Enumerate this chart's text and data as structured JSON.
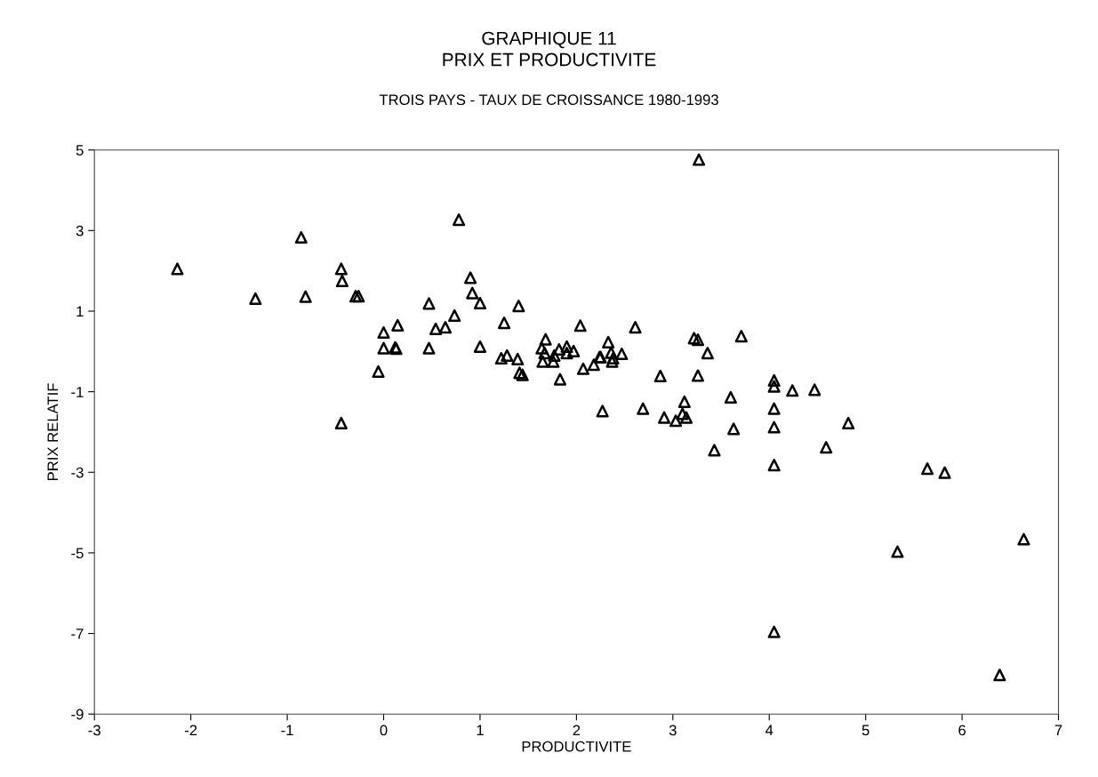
{
  "chart_data": {
    "type": "scatter",
    "title": "GRAPHIQUE 11\nPRIX ET PRODUCTIVITE",
    "subtitle": "TROIS PAYS - TAUX DE CROISSANCE 1980-1993",
    "xlabel": "PRODUCTIVITE",
    "ylabel": "PRIX RELATIF",
    "xlim": [
      -3,
      7
    ],
    "ylim": [
      -9,
      5
    ],
    "xticks": [
      -3,
      -2,
      -1,
      0,
      1,
      2,
      3,
      4,
      5,
      6,
      7
    ],
    "yticks": [
      -9,
      -7,
      -5,
      -3,
      -1,
      1,
      3,
      5
    ],
    "grid": false,
    "marker": "triangle",
    "series": [
      {
        "color": "#000000",
        "x": [
          -2.14,
          -0.855,
          -1.33,
          -0.81,
          -0.44,
          -0.43,
          -0.29,
          -0.26,
          0.78,
          0.9,
          0.92,
          1.0,
          1.4,
          0.47,
          0.735,
          0.64,
          0.54,
          1.25,
          0.145,
          0.0,
          0.0,
          0.13,
          0.12,
          0.47,
          1.0,
          -0.055,
          -0.44,
          1.22,
          1.28,
          1.39,
          1.41,
          1.44,
          1.68,
          1.83,
          2.04,
          2.07,
          2.18,
          2.25,
          2.27,
          1.64,
          1.67,
          1.65,
          1.76,
          1.77,
          1.82,
          1.9,
          1.9,
          1.97,
          3.27,
          2.61,
          3.22,
          3.26,
          3.71,
          3.36,
          2.33,
          2.36,
          2.47,
          2.24,
          2.37,
          2.38,
          2.87,
          3.26,
          2.69,
          2.91,
          3.03,
          3.14,
          3.12,
          3.1,
          3.6,
          4.05,
          4.05,
          4.24,
          4.47,
          4.05,
          3.63,
          4.05,
          4.82,
          3.43,
          4.05,
          4.59,
          5.64,
          5.82,
          5.33,
          6.64,
          4.05,
          6.39
        ],
        "values": [
          2.05,
          2.83,
          1.31,
          1.36,
          2.05,
          1.75,
          1.37,
          1.37,
          3.27,
          1.83,
          1.45,
          1.2,
          1.13,
          1.19,
          0.89,
          0.6,
          0.56,
          0.71,
          0.65,
          0.47,
          0.08,
          0.07,
          0.1,
          0.08,
          0.12,
          -0.5,
          -1.78,
          -0.17,
          -0.1,
          -0.19,
          -0.53,
          -0.58,
          0.3,
          -0.69,
          0.64,
          -0.43,
          -0.33,
          -0.14,
          -1.48,
          0.08,
          -0.04,
          -0.25,
          -0.25,
          -0.1,
          0.05,
          0.12,
          -0.04,
          0.01,
          4.76,
          0.6,
          0.33,
          0.29,
          0.38,
          -0.04,
          0.23,
          -0.03,
          -0.06,
          -0.14,
          -0.25,
          -0.17,
          -0.61,
          -0.6,
          -1.42,
          -1.64,
          -1.72,
          -1.64,
          -1.25,
          -1.55,
          -1.14,
          -0.72,
          -0.87,
          -0.97,
          -0.95,
          -1.42,
          -1.92,
          -1.88,
          -1.78,
          -2.45,
          -2.82,
          -2.38,
          -2.91,
          -3.01,
          -4.97,
          -4.66,
          -6.96,
          -8.03
        ]
      }
    ]
  }
}
